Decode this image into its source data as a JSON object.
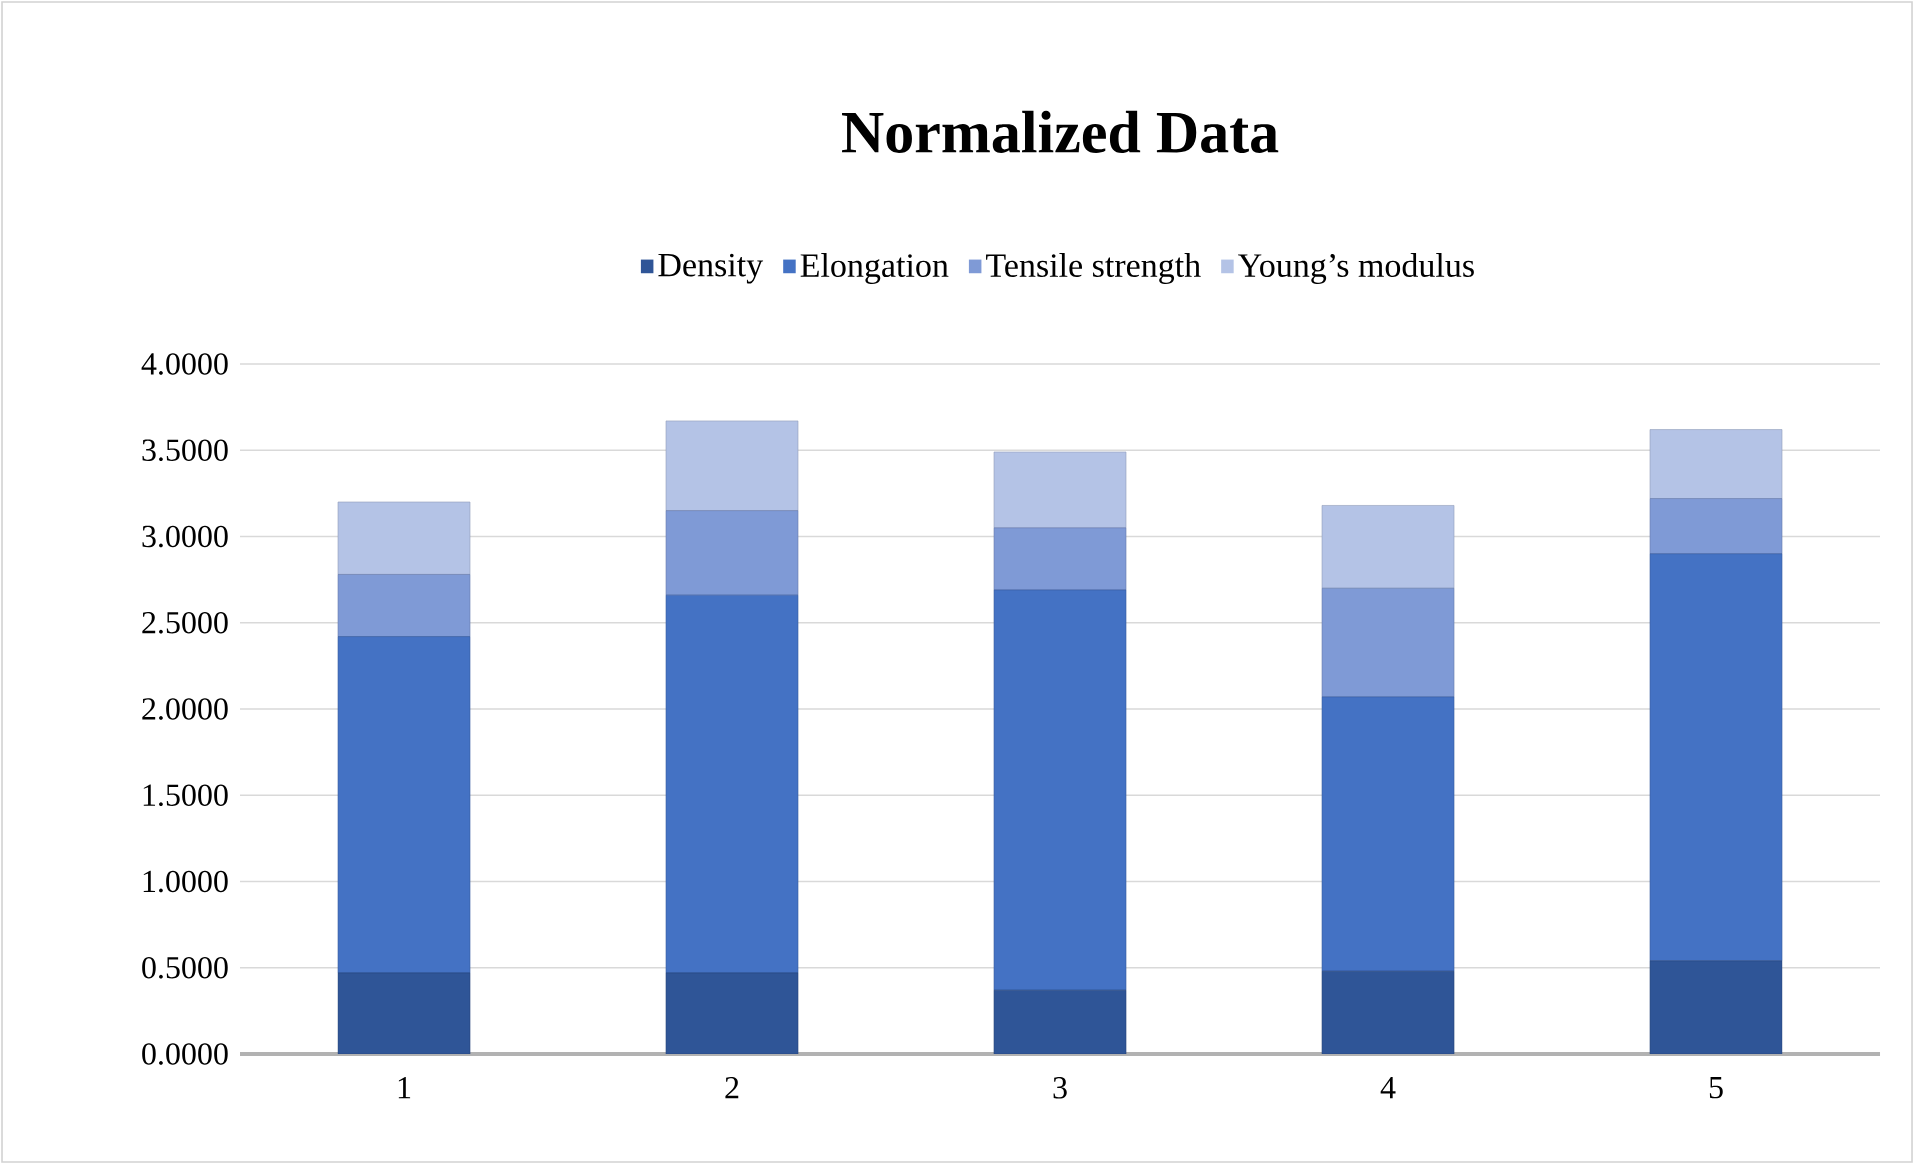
{
  "chart_data": {
    "type": "bar",
    "title": "Normalized Data",
    "stacked": true,
    "categories": [
      "1",
      "2",
      "3",
      "4",
      "5"
    ],
    "series": [
      {
        "name": "Density",
        "color": "#2f5597",
        "values": [
          0.47,
          0.47,
          0.37,
          0.48,
          0.54
        ]
      },
      {
        "name": "Elongation",
        "color": "#4472c4",
        "values": [
          1.95,
          2.19,
          2.32,
          1.59,
          2.36
        ]
      },
      {
        "name": "Tensile strength",
        "color": "#7f9ad6",
        "values": [
          0.36,
          0.49,
          0.36,
          0.63,
          0.32
        ]
      },
      {
        "name": "Young’s modulus",
        "color": "#b4c3e6",
        "values": [
          0.42,
          0.52,
          0.44,
          0.48,
          0.4
        ]
      }
    ],
    "ylim": [
      0,
      4
    ],
    "yticks": [
      {
        "value": 0,
        "label": "0.0000"
      },
      {
        "value": 0.5,
        "label": "0.5000"
      },
      {
        "value": 1,
        "label": "1.0000"
      },
      {
        "value": 1.5,
        "label": "1.5000"
      },
      {
        "value": 2,
        "label": "2.0000"
      },
      {
        "value": 2.5,
        "label": "2.5000"
      },
      {
        "value": 3,
        "label": "3.0000"
      },
      {
        "value": 3.5,
        "label": "3.5000"
      },
      {
        "value": 4,
        "label": "4.0000"
      }
    ],
    "grid": "y",
    "legend": "top"
  }
}
